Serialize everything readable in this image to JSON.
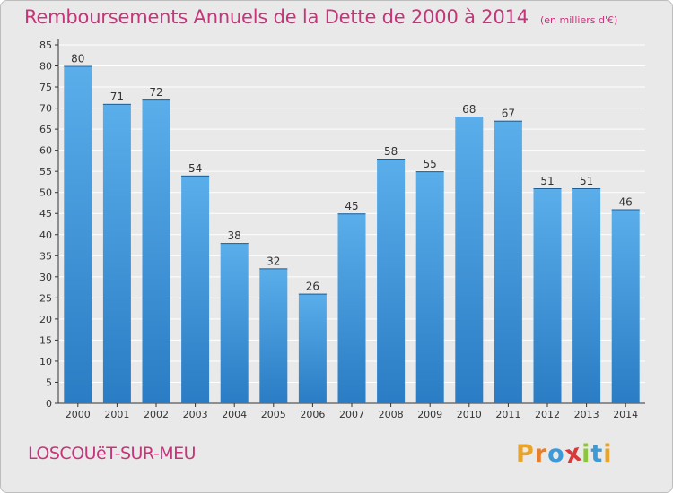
{
  "header": {
    "title": "Remboursements Annuels de la Dette de 2000 à 2014",
    "unit": "(en milliers d'€)"
  },
  "footer": {
    "commune": "LOSCOUëT-SUR-MEU",
    "logo_letters": [
      "P",
      "r",
      "o",
      "x",
      "i",
      "t",
      "i"
    ],
    "logo_colors": [
      "#e8a32a",
      "#e87d2a",
      "#3d9ad6",
      "#d83a3a",
      "#8cc63f",
      "#3d9ad6",
      "#e8a32a"
    ]
  },
  "colors": {
    "title": "#c6357a",
    "bar_top": "#5aaeea",
    "bar_bottom": "#2a7cc4",
    "grid": "#ffffff",
    "background": "#e9e9e9"
  },
  "chart_data": {
    "type": "bar",
    "title": "Remboursements Annuels de la Dette de 2000 à 2014",
    "subtitle": "(en milliers d'€)",
    "categories": [
      "2000",
      "2001",
      "2002",
      "2003",
      "2004",
      "2005",
      "2006",
      "2007",
      "2008",
      "2009",
      "2010",
      "2011",
      "2012",
      "2013",
      "2014"
    ],
    "values": [
      80,
      71,
      72,
      54,
      38,
      32,
      26,
      45,
      58,
      55,
      68,
      67,
      51,
      51,
      46
    ],
    "ylim": [
      0,
      85
    ],
    "yticks": [
      0,
      5,
      10,
      15,
      20,
      25,
      30,
      35,
      40,
      45,
      50,
      55,
      60,
      65,
      70,
      75,
      80,
      85
    ],
    "grid": true,
    "data_labels": true,
    "xlabel": "",
    "ylabel": ""
  }
}
